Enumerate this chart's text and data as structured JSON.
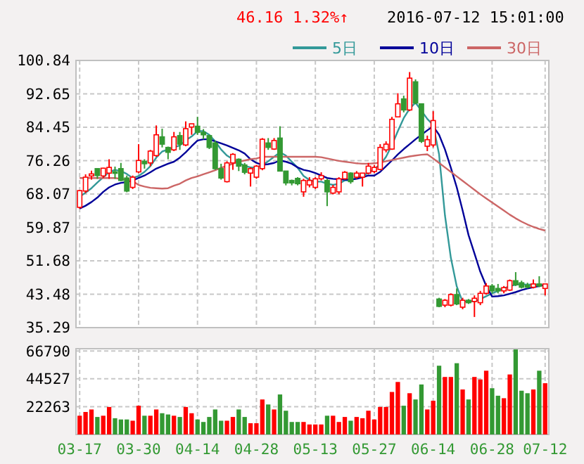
{
  "chart_data": [
    {
      "type": "candlestick",
      "annotations": [
        "46.16",
        "1.32%↑",
        "2016-07-12 15:01:00"
      ],
      "categories": [
        null,
        null,
        null,
        null,
        null,
        null,
        null,
        null,
        null,
        null,
        null,
        null,
        null,
        null,
        null,
        null,
        null,
        null,
        null,
        null,
        null,
        null,
        null,
        null,
        null,
        null,
        null,
        null,
        null,
        null,
        null,
        null,
        null,
        null,
        null,
        null,
        null,
        null,
        null,
        null,
        null,
        null,
        null,
        null,
        null,
        null,
        null,
        null,
        null,
        null,
        null,
        null,
        null,
        null,
        null,
        null,
        null,
        null,
        null,
        null,
        null,
        null,
        null,
        null,
        null,
        null,
        null,
        null,
        null,
        null,
        null,
        null,
        null,
        null,
        null,
        null,
        null,
        null,
        null,
        null
      ],
      "ohlc": [
        [
          64.8,
          69,
          64.5,
          68.9
        ],
        [
          68.8,
          72.9,
          68.3,
          72.2
        ],
        [
          72.5,
          73.8,
          71.6,
          73
        ],
        [
          74.3,
          74.3,
          71.8,
          72.6
        ],
        [
          72.5,
          74.5,
          72,
          74.4
        ],
        [
          73.2,
          76.6,
          71.8,
          74.6
        ],
        [
          73.5,
          74.8,
          71.8,
          73.2
        ],
        [
          74.3,
          75.7,
          71.2,
          71.4
        ],
        [
          72,
          72.6,
          68.5,
          68.8
        ],
        [
          69.7,
          72.6,
          69.3,
          72.2
        ],
        [
          73.5,
          80.3,
          73.2,
          76.3
        ],
        [
          76.1,
          76.6,
          74.3,
          75.5
        ],
        [
          75.7,
          78.9,
          74.9,
          78.6
        ],
        [
          77.5,
          84.9,
          77.2,
          82.6
        ],
        [
          82.1,
          84.1,
          79.5,
          80.3
        ],
        [
          79.5,
          79.7,
          76.6,
          78.3
        ],
        [
          78.9,
          83.3,
          78.6,
          82.1
        ],
        [
          82.4,
          83.3,
          78.9,
          80.3
        ],
        [
          80.1,
          85.9,
          79.8,
          84.1
        ],
        [
          84.5,
          85.3,
          82.6,
          85.3
        ],
        [
          84.7,
          87,
          82.6,
          83.2
        ],
        [
          83.2,
          84,
          81.5,
          82.6
        ],
        [
          82.4,
          82.6,
          79.1,
          79.5
        ],
        [
          80.6,
          81.2,
          74,
          74.3
        ],
        [
          74.3,
          75.5,
          71.6,
          72
        ],
        [
          71.1,
          76.1,
          70.9,
          75.7
        ],
        [
          75.7,
          78.1,
          74,
          77.8
        ],
        [
          76.6,
          76.8,
          73.7,
          74.9
        ],
        [
          75.2,
          75.7,
          72.9,
          73.4
        ],
        [
          73.2,
          74.6,
          69.9,
          74.3
        ],
        [
          72.2,
          75.2,
          71.8,
          74.9
        ],
        [
          74.3,
          81.8,
          73.9,
          81.5
        ],
        [
          80.6,
          81.8,
          78.9,
          79.5
        ],
        [
          79.1,
          81.8,
          78.9,
          81.2
        ],
        [
          81.8,
          84.7,
          73.7,
          73.7
        ],
        [
          73.7,
          73.7,
          70.2,
          70.8
        ],
        [
          71.4,
          71.6,
          70.2,
          70.8
        ],
        [
          71.9,
          72.2,
          70.2,
          70.6
        ],
        [
          68.6,
          71.8,
          67.4,
          71.4
        ],
        [
          70.3,
          72.2,
          69.7,
          71.4
        ],
        [
          69.7,
          72.2,
          69.3,
          71.8
        ],
        [
          71.8,
          73.4,
          71.4,
          72.6
        ],
        [
          71.4,
          71.8,
          65.1,
          68.6
        ],
        [
          68.3,
          70.3,
          68,
          69.7
        ],
        [
          68.6,
          72.2,
          68,
          71.8
        ],
        [
          71.8,
          73.7,
          71.6,
          73.4
        ],
        [
          73.2,
          73.4,
          70.6,
          71.1
        ],
        [
          72.2,
          73.7,
          71.8,
          73.2
        ],
        [
          72.2,
          73.2,
          69.9,
          73.2
        ],
        [
          73.2,
          75.7,
          72.9,
          74.9
        ],
        [
          73.6,
          75.2,
          73.2,
          74.6
        ],
        [
          74.1,
          80.3,
          73.9,
          79.5
        ],
        [
          78.9,
          81,
          78.3,
          80.3
        ],
        [
          79.1,
          87,
          78.9,
          86.4
        ],
        [
          87,
          92.8,
          87,
          90.2
        ],
        [
          91.4,
          92.2,
          88.1,
          88.7
        ],
        [
          88.7,
          98,
          88.4,
          96.5
        ],
        [
          95.6,
          96.2,
          90.1,
          90.4
        ],
        [
          90.2,
          90.2,
          80.6,
          81
        ],
        [
          79.8,
          82.4,
          78.6,
          81.4
        ],
        [
          80.1,
          88.4,
          79.5,
          86.1
        ],
        [
          42.3,
          42.6,
          40.3,
          40.5
        ],
        [
          40.8,
          42.3,
          40.3,
          42
        ],
        [
          40.8,
          43.7,
          40.5,
          43.4
        ],
        [
          43.4,
          44.9,
          40.8,
          41.1
        ],
        [
          40.3,
          42.6,
          39.8,
          42
        ],
        [
          42,
          42.3,
          41.1,
          41.4
        ],
        [
          41.7,
          43.2,
          37.9,
          42.5
        ],
        [
          41.4,
          44.3,
          40.8,
          43.7
        ],
        [
          43.7,
          46.2,
          43.4,
          45.5
        ],
        [
          45.5,
          46,
          43.7,
          44.3
        ],
        [
          44.9,
          46,
          43.7,
          44.3
        ],
        [
          44.3,
          45.5,
          43.7,
          45.1
        ],
        [
          44.5,
          47.1,
          44.3,
          46.8
        ],
        [
          46.8,
          48.9,
          45.5,
          45.8
        ],
        [
          46.3,
          46.8,
          44.9,
          45.2
        ],
        [
          45.7,
          46.3,
          44.9,
          45.2
        ],
        [
          45.2,
          47.1,
          44.9,
          46
        ],
        [
          46,
          47.9,
          45.2,
          45.5
        ],
        [
          44.9,
          46,
          43.2,
          46
        ]
      ],
      "series": [
        {
          "name": "5日",
          "type": "line",
          "color": "#339999",
          "values": [
            67.4,
            68.4,
            69.5,
            70.9,
            72.2,
            73.5,
            74,
            73.7,
            73,
            72,
            72.5,
            73.5,
            74.9,
            77,
            78.5,
            79,
            79.5,
            80,
            81.2,
            82.2,
            83.5,
            83.5,
            82.6,
            81,
            79,
            77.5,
            76.6,
            75.7,
            75,
            74.6,
            74.6,
            75.2,
            76.1,
            77.2,
            78.3,
            77.5,
            76,
            74.5,
            72.5,
            71.5,
            71.1,
            71.1,
            70.6,
            70.3,
            70.6,
            71.4,
            71.4,
            72,
            72.6,
            73.2,
            74.3,
            75.2,
            77.2,
            80.1,
            83.5,
            86.7,
            89,
            90.5,
            88.5,
            86.5,
            85,
            77.8,
            62.8,
            52.4,
            45.4,
            41.6,
            41.8,
            41.7,
            42.3,
            43,
            43.7,
            44.3,
            44.9,
            45.5,
            45.8,
            46,
            45.8,
            45.9,
            45.8,
            45.6
          ]
        },
        {
          "name": "10日",
          "type": "line",
          "color": "#000099",
          "values": [
            64.5,
            65.2,
            66.1,
            67.2,
            68.6,
            69.7,
            70.4,
            70.8,
            71,
            71.4,
            72,
            72.6,
            73.4,
            74.3,
            74.9,
            75.5,
            76,
            77,
            78.3,
            79.8,
            81.2,
            81.5,
            81.5,
            81,
            80.5,
            80,
            79.4,
            78.8,
            78,
            76.6,
            75.7,
            75.2,
            75.4,
            75.7,
            76.3,
            76,
            75.5,
            74.6,
            74,
            73.7,
            73.2,
            72.6,
            72,
            71.8,
            71.7,
            71.6,
            71.6,
            71.8,
            72.2,
            72.6,
            72.6,
            73.5,
            74.9,
            76.3,
            77.8,
            79.1,
            80.3,
            81.5,
            82.6,
            83.7,
            84.7,
            82.6,
            79,
            74.5,
            69.7,
            64,
            58,
            53.5,
            49,
            45.5,
            42.9,
            43,
            43.2,
            43.6,
            44,
            44.5,
            44.9,
            45.2,
            45.5,
            45.8
          ]
        },
        {
          "name": "30日",
          "type": "line",
          "color": "#cc6666",
          "values": [
            72,
            72,
            72,
            72,
            72,
            72,
            72,
            71.8,
            71.6,
            71.2,
            70.3,
            69.9,
            69.6,
            69.5,
            69.4,
            69.5,
            70.1,
            70.6,
            71.4,
            72,
            72.4,
            72.9,
            73.4,
            73.9,
            74.5,
            75,
            75.5,
            76,
            76.3,
            76.6,
            76.8,
            77.2,
            77.2,
            77.2,
            77.2,
            77.2,
            77.2,
            77.2,
            77.2,
            77.2,
            77.2,
            77.1,
            76.8,
            76.5,
            76.2,
            76,
            75.8,
            75.6,
            75.5,
            75.5,
            75.6,
            75.8,
            76.1,
            76.4,
            76.7,
            77,
            77.3,
            77.5,
            77.7,
            77.8,
            76.8,
            75.7,
            74.6,
            73.5,
            72.4,
            71.3,
            70.2,
            69.1,
            68,
            67,
            66,
            65,
            64,
            63,
            62.1,
            61.3,
            60.6,
            60,
            59.5,
            59.1
          ]
        }
      ],
      "ylim": [
        35.29,
        100.84
      ],
      "yticks": [
        35.29,
        43.48,
        51.68,
        59.87,
        68.07,
        76.26,
        84.45,
        92.65,
        100.84
      ],
      "grid": true,
      "legend": "top right",
      "tick_labels": "y"
    },
    {
      "type": "bar",
      "categories": [
        "03-17",
        null,
        null,
        null,
        null,
        null,
        null,
        null,
        null,
        null,
        "03-30",
        null,
        null,
        null,
        null,
        null,
        null,
        null,
        null,
        null,
        "04-14",
        null,
        null,
        null,
        null,
        null,
        null,
        null,
        null,
        null,
        "04-28",
        null,
        null,
        null,
        null,
        null,
        null,
        null,
        null,
        null,
        "05-13",
        null,
        null,
        null,
        null,
        null,
        null,
        null,
        null,
        null,
        "05-27",
        null,
        null,
        null,
        null,
        null,
        null,
        null,
        null,
        null,
        "06-14",
        null,
        null,
        null,
        null,
        null,
        null,
        null,
        null,
        null,
        "06-28",
        null,
        null,
        null,
        null,
        null,
        null,
        null,
        null,
        "07-12"
      ],
      "values": [
        15000,
        18000,
        20000,
        14000,
        15000,
        22000,
        13000,
        12000,
        12000,
        11000,
        23000,
        15000,
        15000,
        20000,
        17000,
        16000,
        15000,
        14000,
        22000,
        17000,
        12000,
        10000,
        14000,
        20000,
        11000,
        11000,
        14000,
        20000,
        14000,
        9000,
        9000,
        28000,
        24000,
        20000,
        32000,
        19000,
        10000,
        10000,
        10000,
        8000,
        8000,
        8000,
        15000,
        15000,
        10000,
        14000,
        11000,
        14000,
        13000,
        19000,
        12000,
        22000,
        22000,
        34000,
        42000,
        23000,
        33000,
        28000,
        40000,
        20000,
        27000,
        55000,
        46000,
        46000,
        57000,
        36000,
        28000,
        46000,
        44000,
        51000,
        37000,
        31000,
        29000,
        48000,
        68000,
        35000,
        33000,
        36000,
        51000,
        41000
      ],
      "colors": [
        "#ff0000",
        "#ff0000",
        "#ff0000",
        "#339933",
        "#ff0000",
        "#ff0000",
        "#339933",
        "#339933",
        "#339933",
        "#ff0000",
        "#ff0000",
        "#339933",
        "#ff0000",
        "#ff0000",
        "#339933",
        "#339933",
        "#ff0000",
        "#339933",
        "#ff0000",
        "#ff0000",
        "#339933",
        "#339933",
        "#339933",
        "#339933",
        "#339933",
        "#ff0000",
        "#ff0000",
        "#339933",
        "#339933",
        "#ff0000",
        "#ff0000",
        "#ff0000",
        "#339933",
        "#ff0000",
        "#339933",
        "#339933",
        "#339933",
        "#339933",
        "#ff0000",
        "#ff0000",
        "#ff0000",
        "#ff0000",
        "#339933",
        "#ff0000",
        "#ff0000",
        "#ff0000",
        "#339933",
        "#ff0000",
        "#ff0000",
        "#ff0000",
        "#ff0000",
        "#ff0000",
        "#ff0000",
        "#ff0000",
        "#ff0000",
        "#339933",
        "#ff0000",
        "#339933",
        "#339933",
        "#ff0000",
        "#ff0000",
        "#339933",
        "#ff0000",
        "#ff0000",
        "#339933",
        "#ff0000",
        "#339933",
        "#ff0000",
        "#ff0000",
        "#ff0000",
        "#339933",
        "#339933",
        "#ff0000",
        "#ff0000",
        "#339933",
        "#339933",
        "#339933",
        "#ff0000",
        "#339933",
        "#ff0000"
      ],
      "ylim": [
        0,
        68600
      ],
      "yticks": [
        {
          "value": 0,
          "label": null
        },
        22263,
        44527,
        66790
      ],
      "grid": true
    }
  ]
}
